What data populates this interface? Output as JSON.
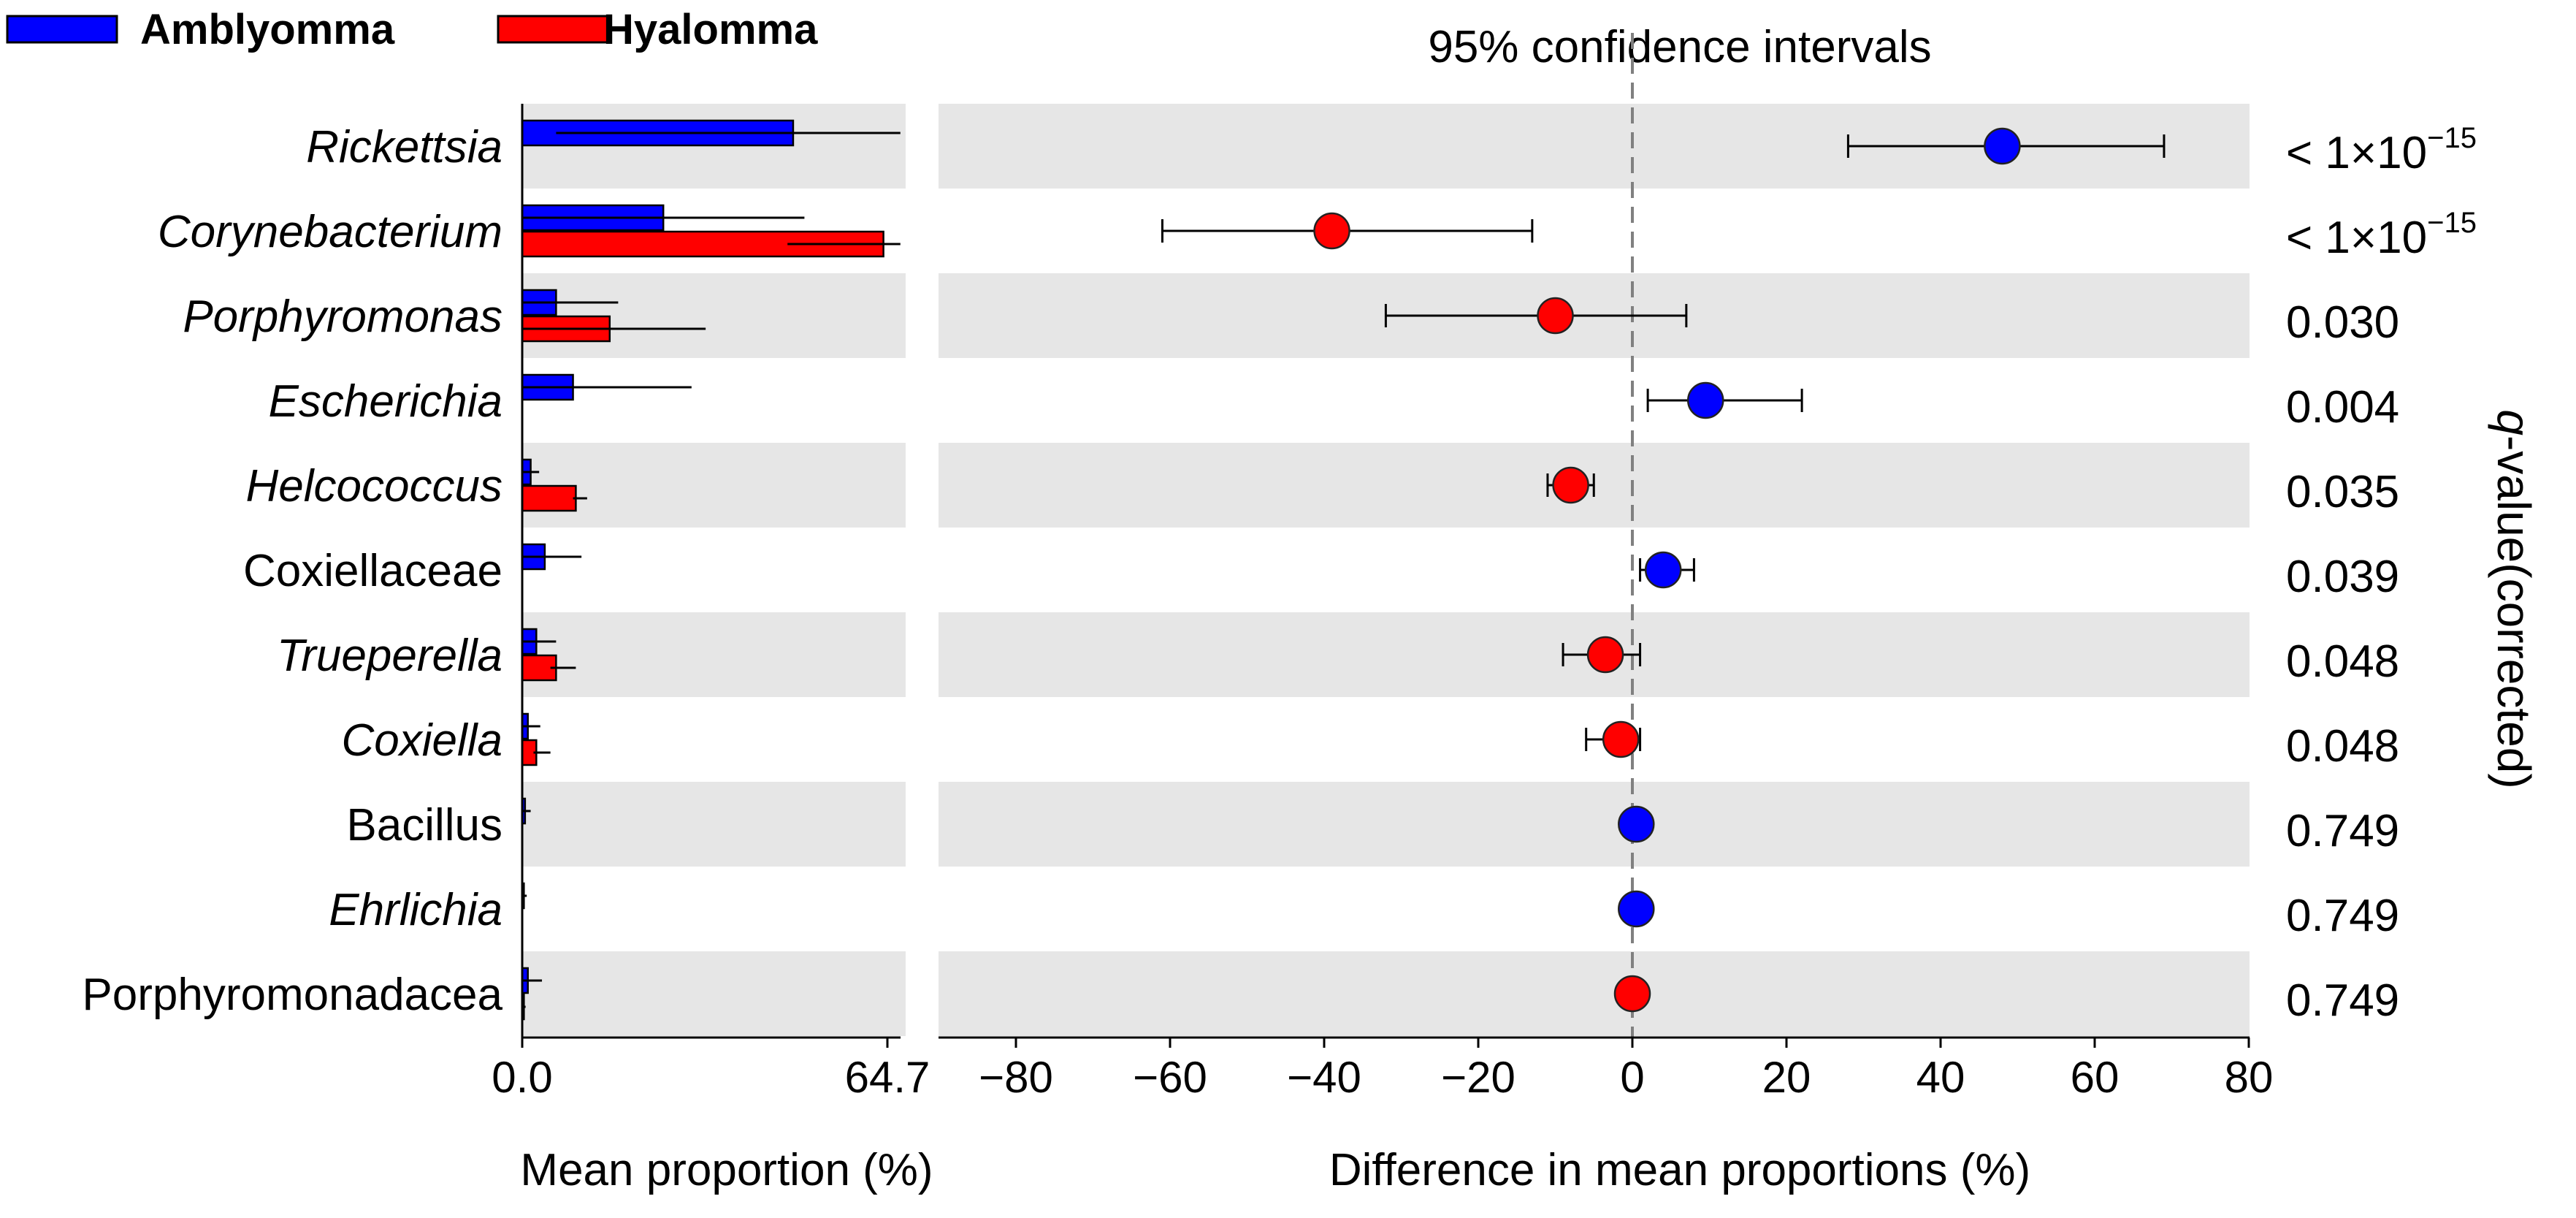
{
  "legend": [
    {
      "label": "Amblyomma",
      "color": "#0000ff"
    },
    {
      "label": "Hyalomma",
      "color": "#ff0000"
    }
  ],
  "colors": {
    "band": "#e6e6e6",
    "line": "#000000",
    "dashed": "#808080"
  },
  "chart_data": [
    {
      "type": "bar",
      "orientation": "horizontal",
      "title": "",
      "xlabel": "Mean proportion (%)",
      "ylabel": "",
      "xlim": [
        0,
        64.7
      ],
      "x_ticks": [
        "0.0",
        "64.7"
      ],
      "categories": [
        "Rickettsia",
        "Corynebacterium",
        "Porphyromonas",
        "Escherichia",
        "Helcococcus",
        "Coxiellaceae",
        "Trueperella",
        "Coxiella",
        "Bacillus",
        "Ehrlichia",
        "Porphyromonadacea"
      ],
      "italic": [
        true,
        true,
        true,
        true,
        true,
        false,
        true,
        true,
        false,
        true,
        false
      ],
      "series": [
        {
          "name": "Amblyomma",
          "color": "#0000ff",
          "values": [
            48,
            25,
            6,
            9,
            1.5,
            4,
            2.5,
            1,
            0.5,
            0.3,
            1
          ],
          "error_low": [
            6,
            0,
            0,
            0,
            0,
            0,
            0,
            0,
            0,
            0,
            0
          ],
          "error_high": [
            67,
            50,
            17,
            30,
            3,
            10.5,
            6,
            3.2,
            1.5,
            0.8,
            3.5
          ]
        },
        {
          "name": "Hyalomma",
          "color": "#ff0000",
          "values": [
            0,
            64,
            15.5,
            0,
            9.5,
            0,
            6,
            2.5,
            0,
            0,
            0.3
          ],
          "error_low": [
            0,
            47,
            0,
            0,
            9,
            0,
            5,
            2,
            0,
            0,
            0
          ],
          "error_high": [
            0,
            67,
            32.5,
            0,
            11.5,
            0,
            9.5,
            5,
            0,
            0,
            0.6
          ]
        }
      ]
    },
    {
      "type": "scatter",
      "title": "95% confidence intervals",
      "xlabel": "Difference in mean proportions (%)",
      "ylabel": "q-value(corrected)",
      "xlim": [
        -80,
        80
      ],
      "x_ticks": [
        -80,
        -60,
        -40,
        -20,
        0,
        20,
        40,
        60,
        80
      ],
      "x_tick_labels": [
        "−80",
        "−60",
        "−40",
        "−20",
        "0",
        "20",
        "40",
        "60",
        "80"
      ],
      "categories": [
        "Rickettsia",
        "Corynebacterium",
        "Porphyromonas",
        "Escherichia",
        "Helcococcus",
        "Coxiellaceae",
        "Trueperella",
        "Coxiella",
        "Bacillus",
        "Ehrlichia",
        "Porphyromonadacea"
      ],
      "points": [
        {
          "diff": 48,
          "ci": [
            28,
            69
          ],
          "color": "#0000ff"
        },
        {
          "diff": -39,
          "ci": [
            -61,
            -13
          ],
          "color": "#ff0000"
        },
        {
          "diff": -10,
          "ci": [
            -32,
            7
          ],
          "color": "#ff0000"
        },
        {
          "diff": 9.5,
          "ci": [
            2,
            22
          ],
          "color": "#0000ff"
        },
        {
          "diff": -8,
          "ci": [
            -11,
            -5
          ],
          "color": "#ff0000"
        },
        {
          "diff": 4,
          "ci": [
            1,
            8
          ],
          "color": "#0000ff"
        },
        {
          "diff": -3.5,
          "ci": [
            -9,
            1
          ],
          "color": "#ff0000"
        },
        {
          "diff": -1.5,
          "ci": [
            -6,
            1
          ],
          "color": "#ff0000"
        },
        {
          "diff": 0.5,
          "ci": [
            0,
            1
          ],
          "color": "#0000ff"
        },
        {
          "diff": 0.5,
          "ci": [
            0,
            1
          ],
          "color": "#0000ff"
        },
        {
          "diff": 0,
          "ci": [
            -1,
            1
          ],
          "color": "#ff0000"
        }
      ],
      "q_values": [
        {
          "base": "< 1×10",
          "exp": "−15"
        },
        {
          "base": "< 1×10",
          "exp": "−15"
        },
        {
          "base": "0.030",
          "exp": ""
        },
        {
          "base": "0.004",
          "exp": ""
        },
        {
          "base": "0.035",
          "exp": ""
        },
        {
          "base": "0.039",
          "exp": ""
        },
        {
          "base": "0.048",
          "exp": ""
        },
        {
          "base": "0.048",
          "exp": ""
        },
        {
          "base": "0.749",
          "exp": ""
        },
        {
          "base": "0.749",
          "exp": ""
        },
        {
          "base": "0.749",
          "exp": ""
        }
      ]
    }
  ]
}
